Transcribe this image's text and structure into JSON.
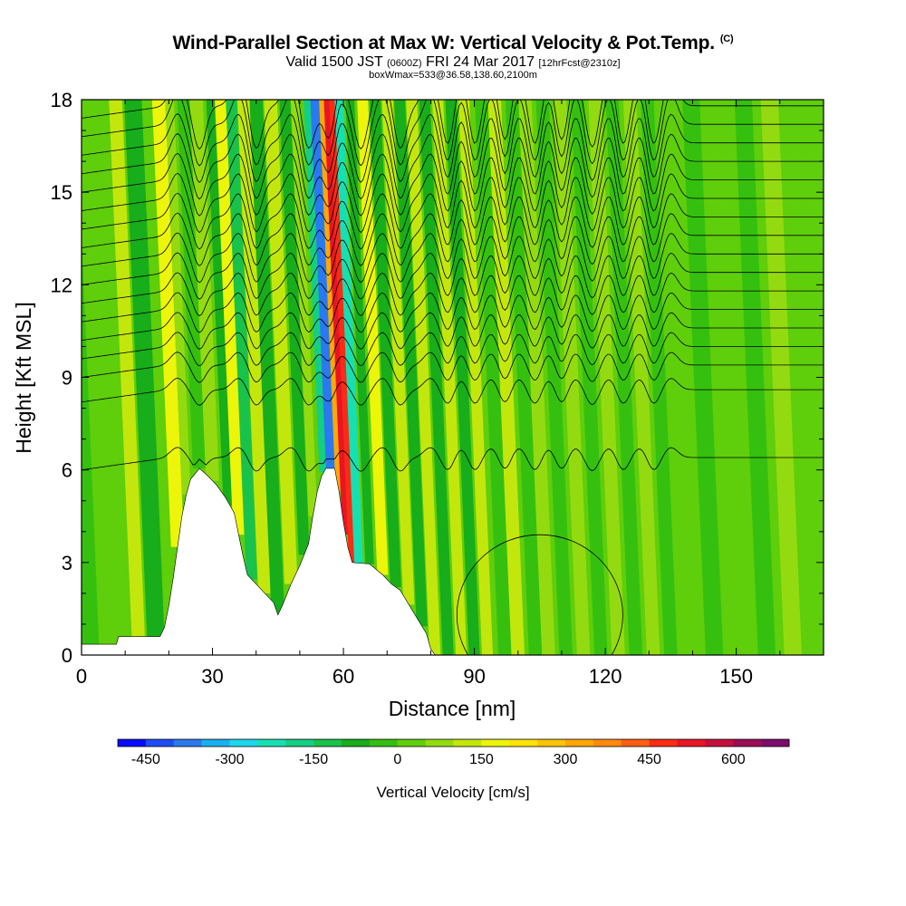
{
  "chart_data": {
    "type": "heatmap",
    "title": "Wind-Parallel Section at Max W: Vertical Velocity & Pot.Temp.",
    "title_mark": "(C)",
    "subtitle_main": "Valid 1500 JST",
    "subtitle_utc": "(0600Z)",
    "subtitle_date": "FRI 24 Mar 2017",
    "subtitle_fcst": "[12hrFcst@2310z]",
    "subline": "boxWmax=533@36.58,138.60,2100m",
    "xlabel": "Distance [nm]",
    "ylabel": "Height [Kft MSL]",
    "xlim": [
      0,
      170
    ],
    "ylim": [
      0,
      18
    ],
    "x_ticks": [
      0,
      30,
      60,
      90,
      120,
      150
    ],
    "y_ticks": [
      0,
      3,
      6,
      9,
      12,
      15,
      18
    ],
    "colorbar": {
      "title": "Vertical Velocity [cm/s]",
      "labels": [
        "-450",
        "-300",
        "-150",
        "0",
        "150",
        "300",
        "450",
        "600"
      ],
      "levels_min": -500,
      "levels_max": 700,
      "level_step": 50,
      "colors": [
        "#0a0aff",
        "#1f4cf7",
        "#2a79f0",
        "#18b1ee",
        "#1cd7ee",
        "#16e0b2",
        "#14cf83",
        "#19c24b",
        "#17ad1b",
        "#35c00f",
        "#5fce0b",
        "#93db10",
        "#c3e70d",
        "#ecf50a",
        "#ffe208",
        "#ffc506",
        "#ffa705",
        "#ff8a0a",
        "#ff5f12",
        "#fb2c13",
        "#e81524",
        "#c50f3d",
        "#9c0d56",
        "#7d0c6d"
      ]
    },
    "terrain_profile": [
      {
        "x": 0,
        "height_kft": 0.35
      },
      {
        "x": 8,
        "height_kft": 0.35
      },
      {
        "x": 8.5,
        "height_kft": 0.6
      },
      {
        "x": 18,
        "height_kft": 0.6
      },
      {
        "x": 19,
        "height_kft": 0.9
      },
      {
        "x": 20,
        "height_kft": 1.6
      },
      {
        "x": 21,
        "height_kft": 2.5
      },
      {
        "x": 22,
        "height_kft": 3.5
      },
      {
        "x": 23,
        "height_kft": 4.5
      },
      {
        "x": 24,
        "height_kft": 5.2
      },
      {
        "x": 25,
        "height_kft": 5.7
      },
      {
        "x": 27,
        "height_kft": 6.05
      },
      {
        "x": 29,
        "height_kft": 5.8
      },
      {
        "x": 31,
        "height_kft": 5.5
      },
      {
        "x": 33,
        "height_kft": 5.1
      },
      {
        "x": 35,
        "height_kft": 4.6
      },
      {
        "x": 36,
        "height_kft": 3.9
      },
      {
        "x": 37,
        "height_kft": 3.2
      },
      {
        "x": 38,
        "height_kft": 2.6
      },
      {
        "x": 40,
        "height_kft": 2.3
      },
      {
        "x": 42,
        "height_kft": 2.0
      },
      {
        "x": 44,
        "height_kft": 1.7
      },
      {
        "x": 45,
        "height_kft": 1.3
      },
      {
        "x": 46,
        "height_kft": 1.6
      },
      {
        "x": 48,
        "height_kft": 2.3
      },
      {
        "x": 50,
        "height_kft": 2.9
      },
      {
        "x": 52,
        "height_kft": 3.6
      },
      {
        "x": 53,
        "height_kft": 4.5
      },
      {
        "x": 54,
        "height_kft": 5.3
      },
      {
        "x": 55,
        "height_kft": 5.8
      },
      {
        "x": 56,
        "height_kft": 6.05
      },
      {
        "x": 58,
        "height_kft": 6.05
      },
      {
        "x": 59,
        "height_kft": 5.3
      },
      {
        "x": 60,
        "height_kft": 4.3
      },
      {
        "x": 61,
        "height_kft": 3.5
      },
      {
        "x": 62,
        "height_kft": 3.0
      },
      {
        "x": 66,
        "height_kft": 2.95
      },
      {
        "x": 69,
        "height_kft": 2.6
      },
      {
        "x": 71,
        "height_kft": 2.3
      },
      {
        "x": 73,
        "height_kft": 2.1
      },
      {
        "x": 76,
        "height_kft": 1.4
      },
      {
        "x": 79,
        "height_kft": 0.7
      },
      {
        "x": 80,
        "height_kft": 0.2
      },
      {
        "x": 81,
        "height_kft": 0
      },
      {
        "x": 170,
        "height_kft": 0
      }
    ],
    "vertical_velocity_bands": [
      {
        "x": 2,
        "w_cms": -50,
        "width_nm": 4
      },
      {
        "x": 7,
        "w_cms": 30,
        "width_nm": 4
      },
      {
        "x": 13,
        "w_cms": 100,
        "width_nm": 3
      },
      {
        "x": 17,
        "w_cms": -60,
        "width_nm": 4
      },
      {
        "x": 22,
        "w_cms": 160,
        "width_nm": 3
      },
      {
        "x": 24,
        "w_cms": 60,
        "width_nm": 2
      },
      {
        "x": 27,
        "w_cms": -50,
        "width_nm": 3
      },
      {
        "x": 30,
        "w_cms": 70,
        "width_nm": 3
      },
      {
        "x": 34,
        "w_cms": -90,
        "width_nm": 3
      },
      {
        "x": 36,
        "w_cms": 170,
        "width_nm": 2.5
      },
      {
        "x": 39,
        "w_cms": -110,
        "width_nm": 2.5
      },
      {
        "x": 42,
        "w_cms": 100,
        "width_nm": 3
      },
      {
        "x": 45,
        "w_cms": -80,
        "width_nm": 3
      },
      {
        "x": 48,
        "w_cms": 120,
        "width_nm": 3
      },
      {
        "x": 51,
        "w_cms": -70,
        "width_nm": 2.5
      },
      {
        "x": 53,
        "w_cms": 80,
        "width_nm": 2
      },
      {
        "x": 55.5,
        "w_cms": -200,
        "width_nm": 2
      },
      {
        "x": 57,
        "w_cms": -380,
        "width_nm": 2
      },
      {
        "x": 59,
        "w_cms": 300,
        "width_nm": 1.5
      },
      {
        "x": 60.5,
        "w_cms": 533,
        "width_nm": 1.5
      },
      {
        "x": 62,
        "w_cms": 450,
        "width_nm": 1.5
      },
      {
        "x": 63.5,
        "w_cms": -250,
        "width_nm": 2
      },
      {
        "x": 66,
        "w_cms": -90,
        "width_nm": 2
      },
      {
        "x": 69,
        "w_cms": 170,
        "width_nm": 2.5
      },
      {
        "x": 72,
        "w_cms": -80,
        "width_nm": 2.5
      },
      {
        "x": 75,
        "w_cms": 100,
        "width_nm": 2.5
      },
      {
        "x": 78,
        "w_cms": -70,
        "width_nm": 2.5
      },
      {
        "x": 81,
        "w_cms": 100,
        "width_nm": 2.5
      },
      {
        "x": 84,
        "w_cms": -60,
        "width_nm": 2.5
      },
      {
        "x": 87,
        "w_cms": 130,
        "width_nm": 2.5
      },
      {
        "x": 90,
        "w_cms": -90,
        "width_nm": 2.5
      },
      {
        "x": 93,
        "w_cms": 110,
        "width_nm": 2.5
      },
      {
        "x": 97,
        "w_cms": -50,
        "width_nm": 3
      },
      {
        "x": 100,
        "w_cms": 100,
        "width_nm": 3
      },
      {
        "x": 104,
        "w_cms": -40,
        "width_nm": 3
      },
      {
        "x": 107,
        "w_cms": 70,
        "width_nm": 3
      },
      {
        "x": 111,
        "w_cms": -40,
        "width_nm": 3
      },
      {
        "x": 115,
        "w_cms": 60,
        "width_nm": 3
      },
      {
        "x": 119,
        "w_cms": -30,
        "width_nm": 3
      },
      {
        "x": 123,
        "w_cms": 60,
        "width_nm": 3
      },
      {
        "x": 127,
        "w_cms": -30,
        "width_nm": 3
      },
      {
        "x": 131,
        "w_cms": 50,
        "width_nm": 3
      },
      {
        "x": 135,
        "w_cms": -30,
        "width_nm": 3
      },
      {
        "x": 140,
        "w_cms": 40,
        "width_nm": 4
      },
      {
        "x": 145,
        "w_cms": -20,
        "width_nm": 4
      },
      {
        "x": 151,
        "w_cms": 40,
        "width_nm": 4
      },
      {
        "x": 157,
        "w_cms": -20,
        "width_nm": 4
      },
      {
        "x": 163,
        "w_cms": 50,
        "width_nm": 4
      },
      {
        "x": 168,
        "w_cms": 0,
        "width_nm": 3
      }
    ],
    "theta_contours_base_kft": [
      6.4,
      8.6,
      9.4,
      10.0,
      10.6,
      11.2,
      11.8,
      12.4,
      13.0,
      13.6,
      14.2,
      14.8,
      15.4,
      16.0,
      16.6,
      17.2,
      17.8
    ],
    "wave_crests_nm": [
      22,
      36,
      48,
      59,
      69,
      80,
      87,
      94,
      100,
      107,
      113,
      121,
      128,
      135
    ],
    "wave_troughs_nm": [
      27,
      40,
      52,
      57,
      64,
      73,
      84,
      90,
      97,
      104,
      110,
      117,
      124,
      131
    ]
  }
}
